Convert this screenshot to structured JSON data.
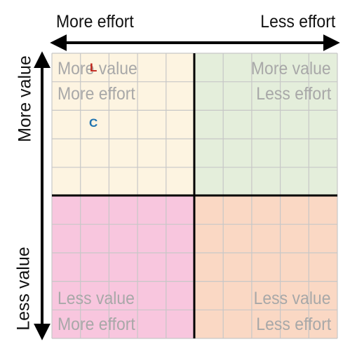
{
  "axes": {
    "top_left": "More effort",
    "top_right": "Less effort",
    "left_top": "More value",
    "left_bottom": "Less value"
  },
  "quadrants": {
    "top_left": {
      "line1": "More value",
      "line2": "More effort",
      "color": "#fdf4e1"
    },
    "top_right": {
      "line1": "More value",
      "line2": "Less effort",
      "color": "#e4eedb"
    },
    "bottom_left": {
      "line1": "Less value",
      "line2": "More effort",
      "color": "#f8c6de"
    },
    "bottom_right": {
      "line1": "Less value",
      "line2": "Less effort",
      "color": "#fad8c4"
    }
  },
  "markers": [
    {
      "label": "L",
      "color": "#c0241b"
    },
    {
      "label": "C",
      "color": "#1e73b0"
    }
  ],
  "colors": {
    "grid": "#c7c7c7",
    "axis": "#000000",
    "quadrant_text": "#a8a8a8"
  }
}
